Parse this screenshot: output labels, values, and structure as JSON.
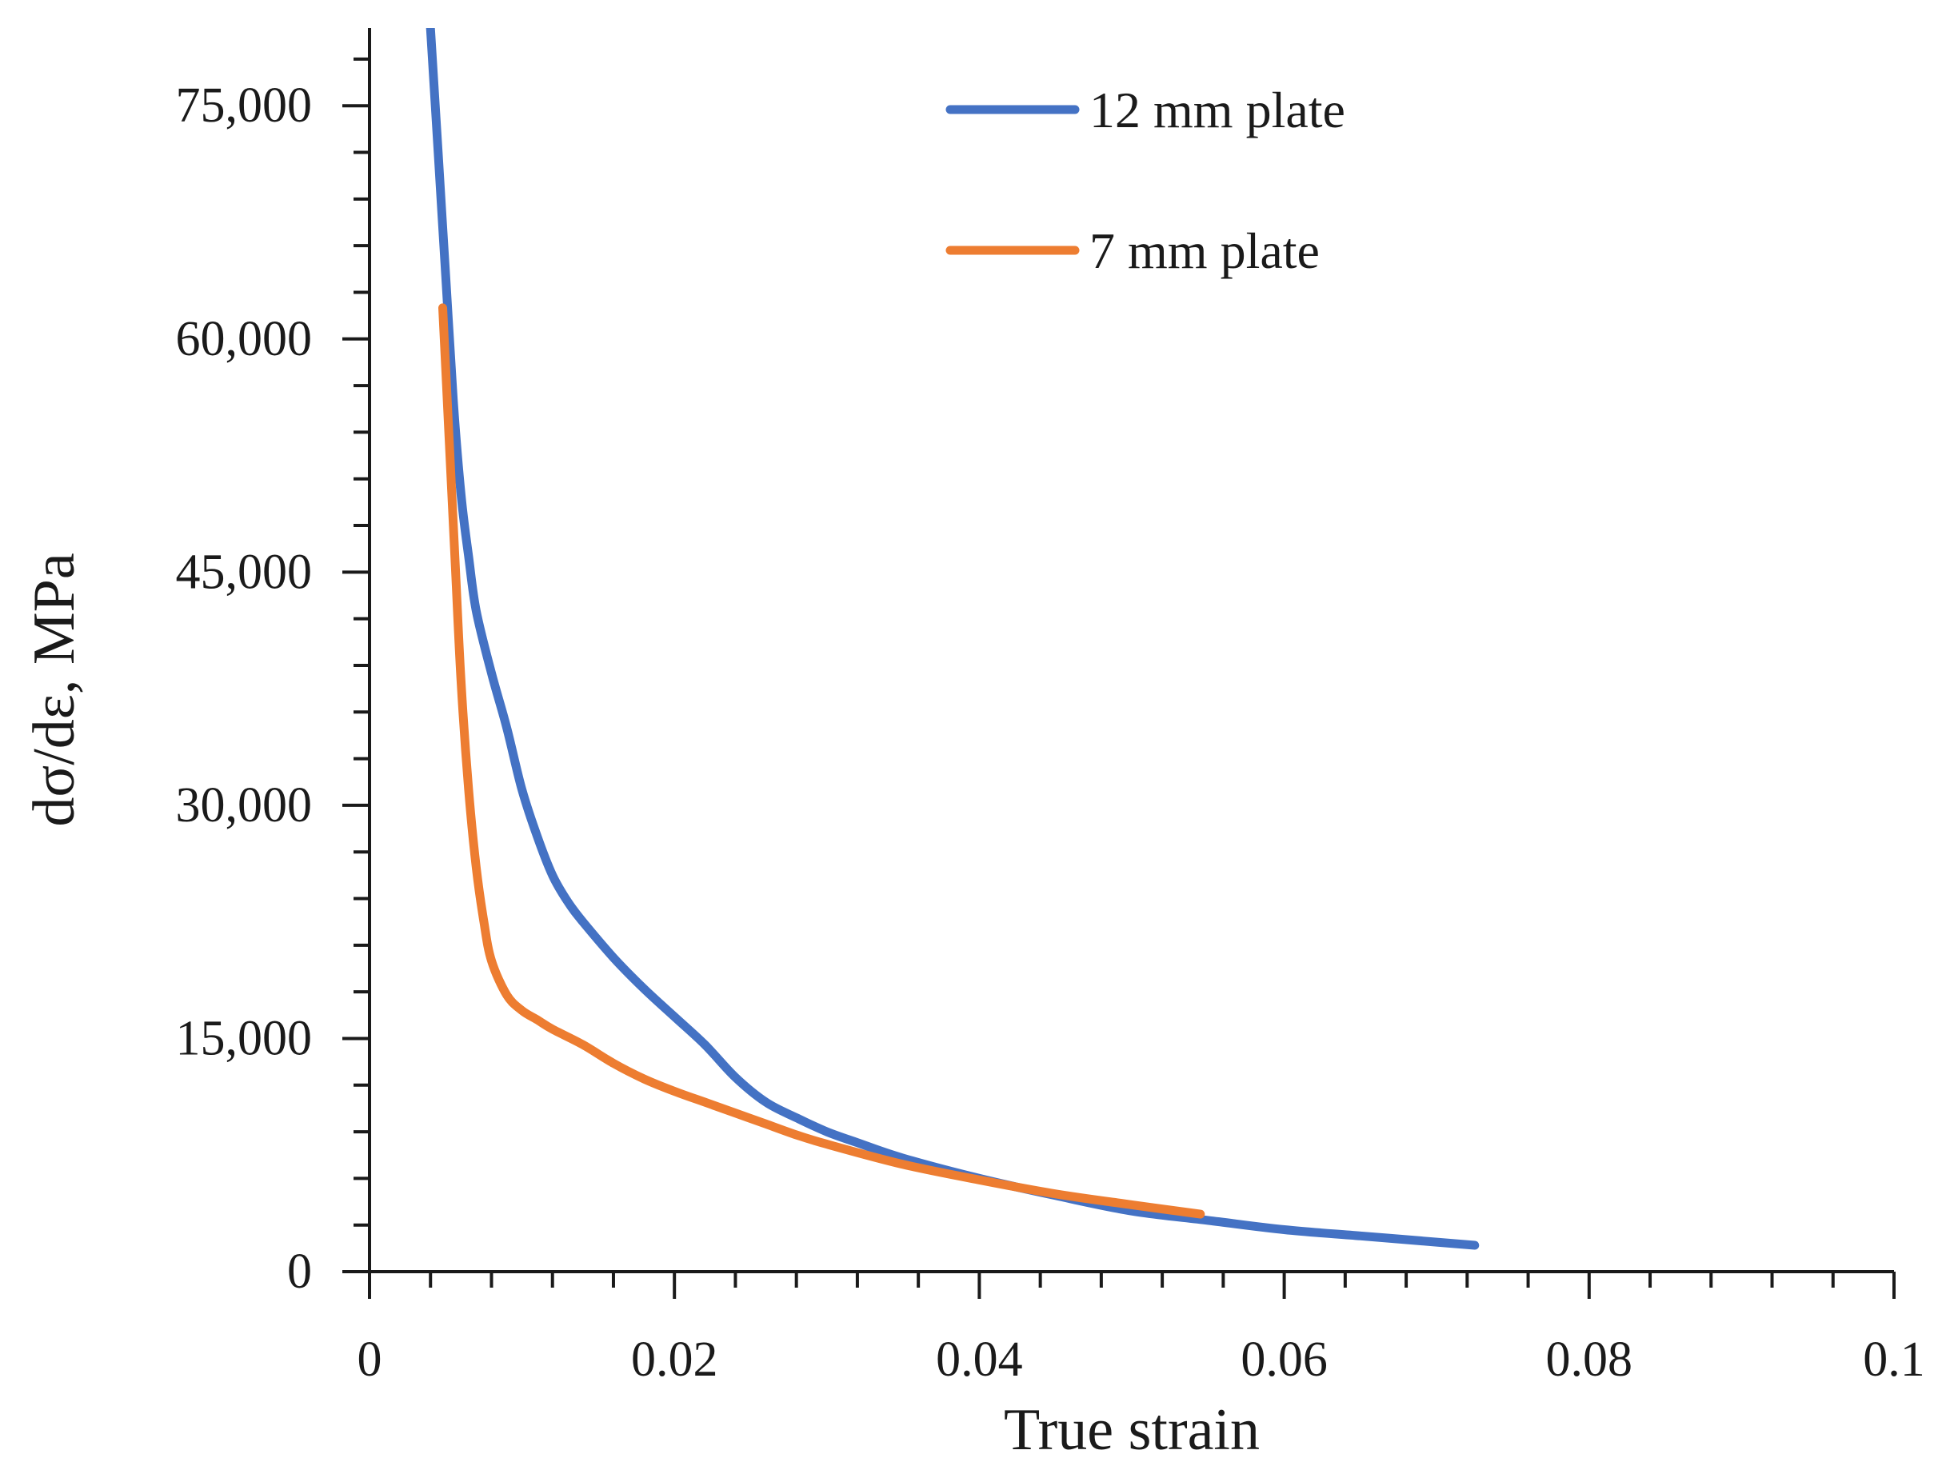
{
  "chart_data": {
    "type": "line",
    "title": "",
    "xlabel": "True strain",
    "ylabel": "dσ/dε,  MPa",
    "xlim": [
      0,
      0.1
    ],
    "ylim": [
      0,
      80000
    ],
    "x_ticks": [
      0,
      0.02,
      0.04,
      0.06,
      0.08,
      0.1
    ],
    "x_tick_labels": [
      "0",
      "0.02",
      "0.04",
      "0.06",
      "0.08",
      "0.1"
    ],
    "x_minor_step": 0.004,
    "y_ticks": [
      0,
      15000,
      30000,
      45000,
      60000,
      75000
    ],
    "y_tick_labels": [
      "0",
      "15,000",
      "30,000",
      "45,000",
      "60,000",
      "75,000"
    ],
    "y_minor_step": 3000,
    "grid": false,
    "legend_position": "top-center",
    "series": [
      {
        "name": "12 mm plate",
        "color": "#4472C4",
        "x": [
          0.004,
          0.0045,
          0.005,
          0.0055,
          0.006,
          0.0065,
          0.007,
          0.008,
          0.009,
          0.01,
          0.011,
          0.012,
          0.013,
          0.014,
          0.016,
          0.018,
          0.02,
          0.022,
          0.024,
          0.026,
          0.028,
          0.03,
          0.032,
          0.035,
          0.04,
          0.045,
          0.05,
          0.055,
          0.06,
          0.065,
          0.07,
          0.0725
        ],
        "y": [
          80000,
          72000,
          64000,
          56000,
          50000,
          46000,
          42500,
          38500,
          35000,
          31000,
          28000,
          25500,
          23800,
          22500,
          20200,
          18200,
          16400,
          14600,
          12500,
          10900,
          9900,
          9000,
          8300,
          7300,
          6000,
          4900,
          3900,
          3300,
          2700,
          2300,
          1900,
          1700
        ]
      },
      {
        "name": "7 mm plate",
        "color": "#ED7D31",
        "x": [
          0.0048,
          0.0052,
          0.0056,
          0.006,
          0.0065,
          0.007,
          0.0075,
          0.008,
          0.009,
          0.01,
          0.011,
          0.012,
          0.014,
          0.016,
          0.018,
          0.02,
          0.022,
          0.024,
          0.026,
          0.028,
          0.03,
          0.035,
          0.04,
          0.045,
          0.05,
          0.0545
        ],
        "y": [
          62000,
          54000,
          46000,
          38000,
          31000,
          26000,
          22500,
          20000,
          17800,
          16800,
          16200,
          15600,
          14600,
          13400,
          12400,
          11600,
          10900,
          10200,
          9500,
          8800,
          8200,
          6900,
          5900,
          5000,
          4300,
          3700
        ]
      }
    ]
  }
}
